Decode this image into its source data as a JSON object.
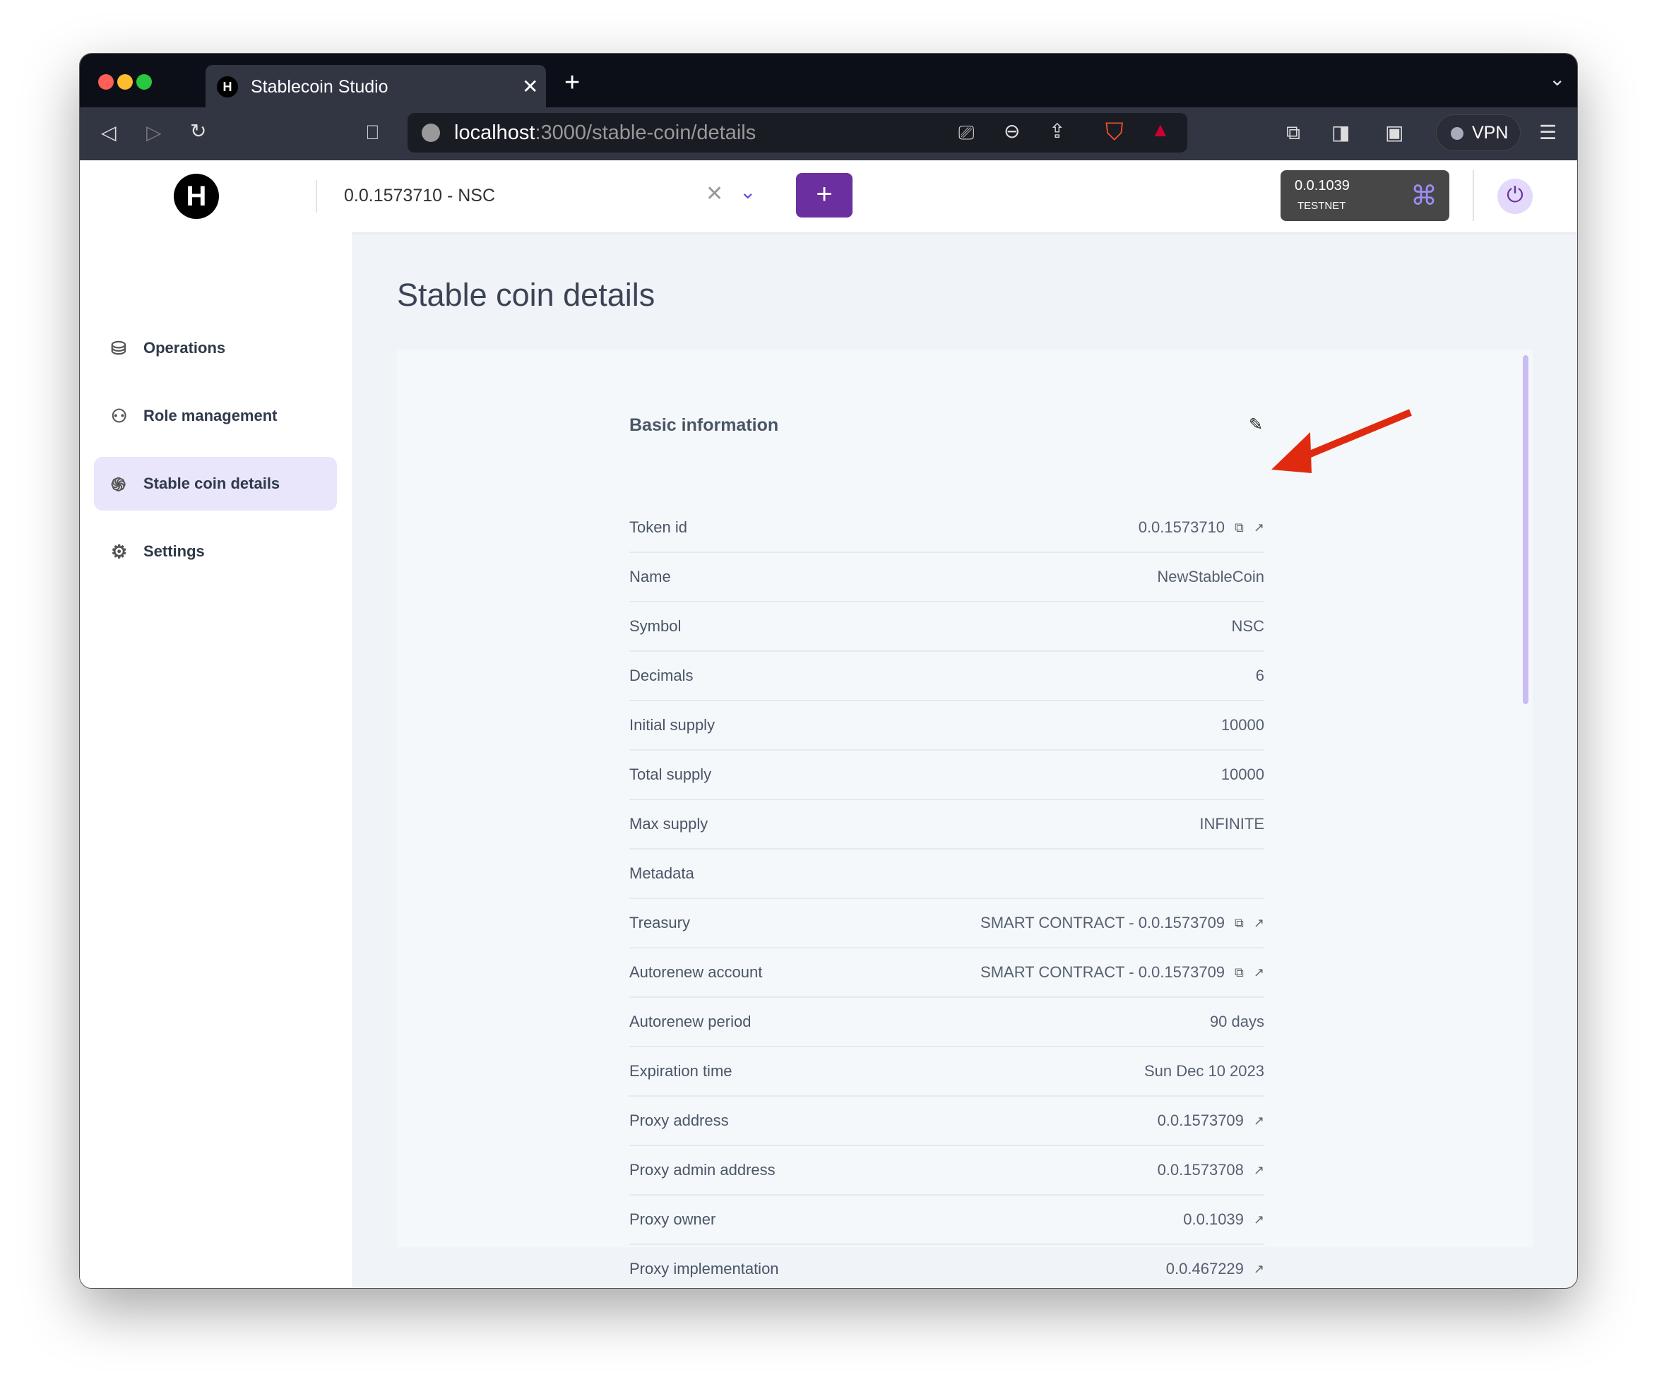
{
  "browser": {
    "tab_title": "Stablecoin Studio",
    "url_host": "localhost",
    "url_path": ":3000/stable-coin/details",
    "vpn_label": "VPN"
  },
  "header": {
    "selected_coin": "0.0.1573710 - NSC",
    "account_id": "0.0.1039",
    "network": "TESTNET",
    "add_label": "+"
  },
  "sidebar": {
    "items": [
      {
        "label": "Operations",
        "icon": "coins-icon"
      },
      {
        "label": "Role management",
        "icon": "users-icon"
      },
      {
        "label": "Stable coin details",
        "icon": "fingerprint-icon",
        "active": true
      },
      {
        "label": "Settings",
        "icon": "gear-icon"
      }
    ]
  },
  "page": {
    "title": "Stable coin details",
    "section": "Basic information",
    "rows": [
      {
        "label": "Token id",
        "value": "0.0.1573710",
        "copy": true,
        "link": true
      },
      {
        "label": "Name",
        "value": "NewStableCoin"
      },
      {
        "label": "Symbol",
        "value": "NSC"
      },
      {
        "label": "Decimals",
        "value": "6"
      },
      {
        "label": "Initial supply",
        "value": "10000"
      },
      {
        "label": "Total supply",
        "value": "10000"
      },
      {
        "label": "Max supply",
        "value": "INFINITE"
      },
      {
        "label": "Metadata",
        "value": ""
      },
      {
        "label": "Treasury",
        "value": "SMART CONTRACT - 0.0.1573709",
        "copy": true,
        "link": true
      },
      {
        "label": "Autorenew account",
        "value": "SMART CONTRACT - 0.0.1573709",
        "copy": true,
        "link": true
      },
      {
        "label": "Autorenew period",
        "value": "90 days"
      },
      {
        "label": "Expiration time",
        "value": "Sun Dec 10 2023"
      },
      {
        "label": "Proxy address",
        "value": "0.0.1573709",
        "link": true
      },
      {
        "label": "Proxy admin address",
        "value": "0.0.1573708",
        "link": true
      },
      {
        "label": "Proxy owner",
        "value": "0.0.1039",
        "link": true
      },
      {
        "label": "Proxy implementation",
        "value": "0.0.467229",
        "link": true
      }
    ]
  },
  "colors": {
    "accent": "#6b2fa0",
    "active_bg": "#e9e5fb",
    "arrow": "#e02a10"
  }
}
